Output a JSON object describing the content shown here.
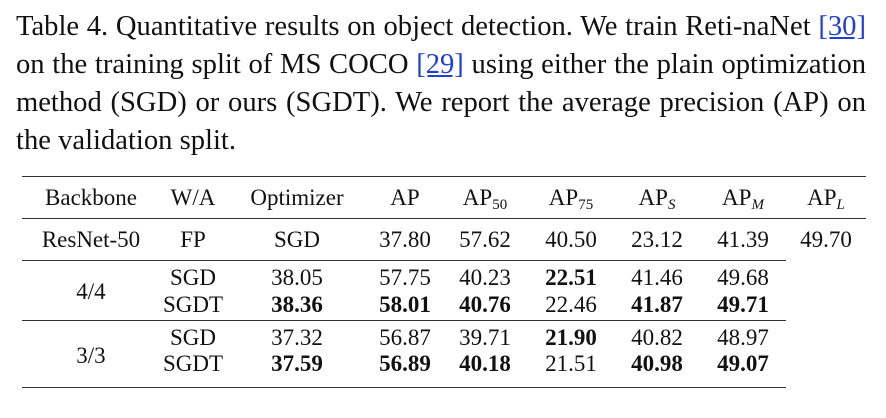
{
  "caption": {
    "prefix": "Table 4.  Quantitative results on object detection.  We train Reti-naNet ",
    "cite_retinanet": "[30]",
    "middle": " on the training split of MS COCO ",
    "cite_coco": "[29]",
    "suffix": " using either the plain optimization method (SGD) or ours (SGDT). We report the average precision (AP) on the validation split."
  },
  "table": {
    "headers": {
      "backbone": "Backbone",
      "wa": "W/A",
      "optimizer": "Optimizer",
      "ap": "AP",
      "ap50_base": "AP",
      "ap50_sub": "50",
      "ap75_base": "AP",
      "ap75_sub": "75",
      "aps_base": "AP",
      "aps_sub": "S",
      "apm_base": "AP",
      "apm_sub": "M",
      "apl_base": "AP",
      "apl_sub": "L"
    },
    "backbone": "ResNet-50",
    "groups": [
      {
        "wa": "FP",
        "rows": [
          {
            "optimizer": "SGD",
            "ap": "37.80",
            "ap50": "57.62",
            "ap75": "40.50",
            "aps": "23.12",
            "apm": "41.39",
            "apl": "49.70"
          }
        ]
      },
      {
        "wa": "4/4",
        "rows": [
          {
            "optimizer": "SGD",
            "ap": "38.05",
            "ap50": "57.75",
            "ap75": "40.23",
            "aps": "22.51",
            "apm": "41.46",
            "apl": "49.68"
          },
          {
            "optimizer": "SGDT",
            "ap": "38.36",
            "ap50": "58.01",
            "ap75": "40.76",
            "aps": "22.46",
            "apm": "41.87",
            "apl": "49.71"
          }
        ]
      },
      {
        "wa": "3/3",
        "rows": [
          {
            "optimizer": "SGD",
            "ap": "37.32",
            "ap50": "56.87",
            "ap75": "39.71",
            "aps": "21.90",
            "apm": "40.82",
            "apl": "48.97"
          },
          {
            "optimizer": "SGDT",
            "ap": "37.59",
            "ap50": "56.89",
            "ap75": "40.18",
            "aps": "21.51",
            "apm": "40.98",
            "apl": "49.07"
          }
        ]
      }
    ],
    "colors": {
      "citation": "#1f3fd6",
      "text": "#111111",
      "rules": "#333333"
    }
  }
}
